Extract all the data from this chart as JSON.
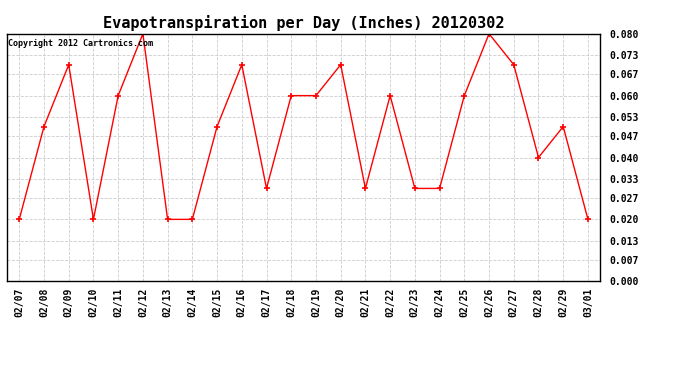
{
  "title": "Evapotranspiration per Day (Inches) 20120302",
  "copyright_text": "Copyright 2012 Cartronics.com",
  "dates": [
    "02/07",
    "02/08",
    "02/09",
    "02/10",
    "02/11",
    "02/12",
    "02/13",
    "02/14",
    "02/15",
    "02/16",
    "02/17",
    "02/18",
    "02/19",
    "02/20",
    "02/21",
    "02/22",
    "02/23",
    "02/24",
    "02/25",
    "02/26",
    "02/27",
    "02/28",
    "02/29",
    "03/01"
  ],
  "values": [
    0.02,
    0.05,
    0.07,
    0.02,
    0.06,
    0.08,
    0.02,
    0.02,
    0.05,
    0.07,
    0.03,
    0.06,
    0.06,
    0.07,
    0.03,
    0.06,
    0.03,
    0.03,
    0.06,
    0.08,
    0.07,
    0.04,
    0.05,
    0.02
  ],
  "ylim": [
    0.0,
    0.08
  ],
  "yticks": [
    0.0,
    0.007,
    0.013,
    0.02,
    0.027,
    0.033,
    0.04,
    0.047,
    0.053,
    0.06,
    0.067,
    0.073,
    0.08
  ],
  "line_color": "red",
  "marker": "+",
  "marker_size": 5,
  "bg_color": "#ffffff",
  "grid_color": "#cccccc",
  "title_fontsize": 11,
  "tick_fontsize": 7,
  "copyright_fontsize": 6
}
